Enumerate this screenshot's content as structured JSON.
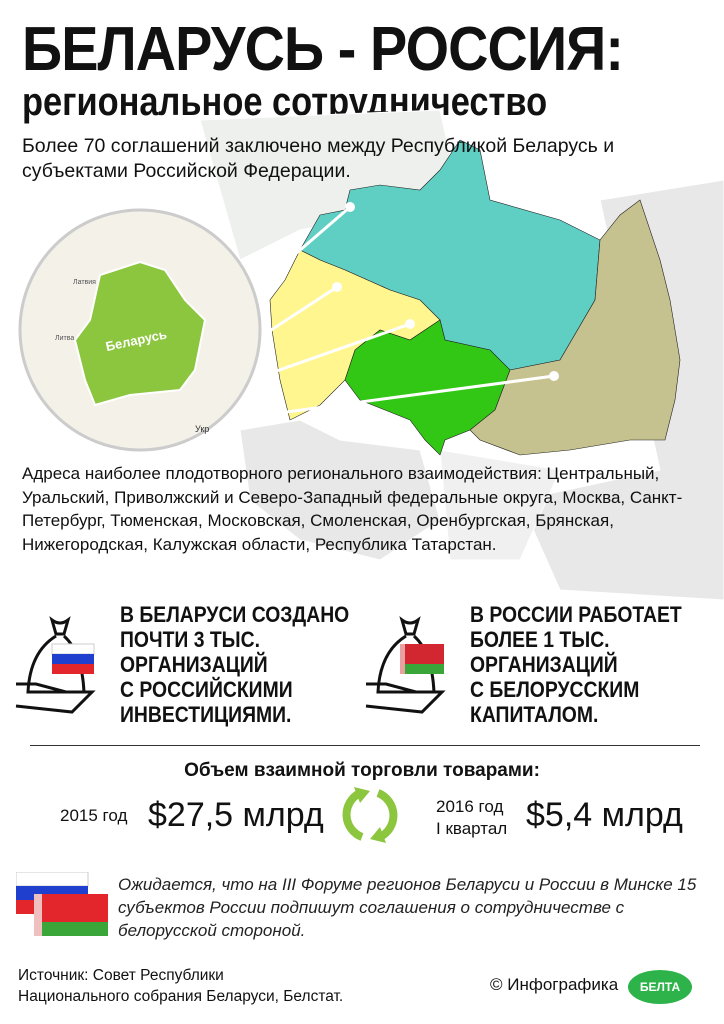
{
  "header": {
    "title": "БЕЛАРУСЬ - РОССИЯ:",
    "subtitle": "региональное сотрудничество"
  },
  "intro": "Более 70 соглашений заключено между Республикой Беларусь и субъектами Российской Федерации.",
  "map": {
    "labels": {
      "belarus": "Беларусь",
      "latvia": "Латвия",
      "lithuania": "Литва",
      "ukraine": "Укр"
    },
    "colors": {
      "belarus": "#8cc63f",
      "northwest": "#5fcfc4",
      "central": "#fff68f",
      "volga": "#33c715",
      "ural": "#c5c28f"
    }
  },
  "regions_text": "Адреса наиболее плодотворного регионального взаимодействия: Центральный, Уральский, Приволжский и Северо-Западный федеральные округа, Москва, Санкт-Петербург, Тюменская, Московская, Смоленская, Оренбургская, Брянская, Нижегородская, Калужская области, Республика Татарстан.",
  "stats": [
    {
      "lines": [
        "В БЕЛАРУСИ СОЗДАНО",
        "ПОЧТИ 3 ТЫС.",
        "ОРГАНИЗАЦИЙ",
        "С РОССИЙСКИМИ",
        "ИНВЕСТИЦИЯМИ."
      ],
      "icon": "money-bag-russia-flag-icon"
    },
    {
      "lines": [
        "В РОССИИ РАБОТАЕТ",
        "БОЛЕЕ 1 ТЫС.",
        "ОРГАНИЗАЦИЙ",
        "С БЕЛОРУССКИМ",
        "КАПИТАЛОМ."
      ],
      "icon": "money-bag-belarus-flag-icon"
    }
  ],
  "trade": {
    "title": "Объем взаимной торговли товарами:",
    "left": {
      "period": "2015 год",
      "value": "$27,5 млрд"
    },
    "right": {
      "period1": "2016 год",
      "period2": "I квартал",
      "value": "$5,4 млрд"
    },
    "icon": "exchange-arrows-icon",
    "accent": "#8cc63f"
  },
  "note": "Ожидается, что на III Форуме регионов Беларуси и России в Минске 15 субъектов России подпишут соглашения о сотрудничестве с белорусской стороной.",
  "footer": {
    "source_line1": "Источник: Совет Республики",
    "source_line2": "Национального собрания Беларуси, Белстат.",
    "copyright": "© Инфографика",
    "logo": "БЕЛТА"
  }
}
